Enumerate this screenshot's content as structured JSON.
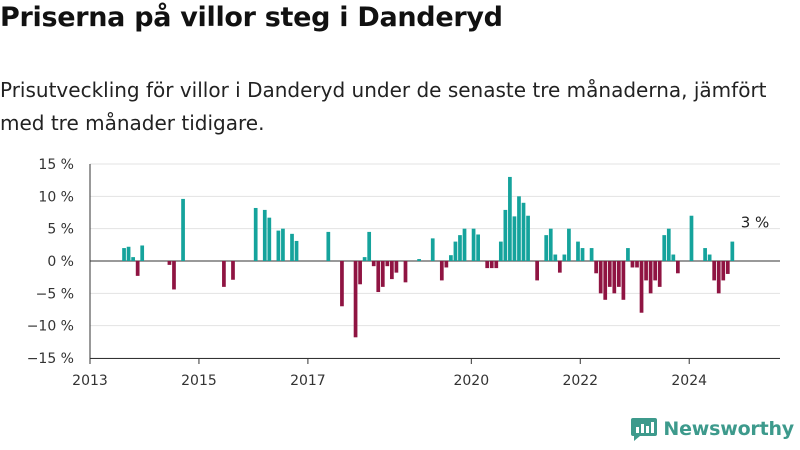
{
  "title": "Priserna på villor steg i Danderyd",
  "subtitle": "Prisutveckling för villor i Danderyd under de senaste tre månaderna, jämfört med tre månader tidigare.",
  "brand": "Newsworthy",
  "colors": {
    "positive": "#15a39c",
    "negative": "#8f1442",
    "grid": "#e3e3e3",
    "zero_line": "#333333",
    "axis": "#333333",
    "brand": "#3d9a8c"
  },
  "chart_data": {
    "type": "bar",
    "x_scale": "time",
    "x_range": [
      "2013-01",
      "2025-09"
    ],
    "ylim": [
      -15,
      15
    ],
    "yticks": [
      {
        "value": 15,
        "label": "15 %"
      },
      {
        "value": 10,
        "label": "10 %"
      },
      {
        "value": 5,
        "label": "5 %"
      },
      {
        "value": 0,
        "label": "0 %"
      },
      {
        "value": -5,
        "label": "−5 %"
      },
      {
        "value": -10,
        "label": "−10 %"
      },
      {
        "value": -15,
        "label": "−15 %"
      }
    ],
    "xticks": [
      {
        "date": "2013-01",
        "label": "2013"
      },
      {
        "date": "2015-01",
        "label": "2015"
      },
      {
        "date": "2017-01",
        "label": "2017"
      },
      {
        "date": "2020-01",
        "label": "2020"
      },
      {
        "date": "2022-01",
        "label": "2022"
      },
      {
        "date": "2024-01",
        "label": "2024"
      }
    ],
    "grid": true,
    "annotation": {
      "date": "2025-03",
      "value": 3,
      "label": "3 %"
    },
    "series": [
      {
        "values": [
          [
            "2013-08",
            2.0
          ],
          [
            "2013-09",
            2.2
          ],
          [
            "2013-10",
            0.6
          ],
          [
            "2013-11",
            -2.3
          ],
          [
            "2013-12",
            2.4
          ],
          [
            "2014-06",
            -0.6
          ],
          [
            "2014-07",
            -4.4
          ],
          [
            "2014-09",
            9.6
          ],
          [
            "2015-06",
            -4.0
          ],
          [
            "2015-08",
            -2.9
          ],
          [
            "2016-01",
            8.2
          ],
          [
            "2016-03",
            7.9
          ],
          [
            "2016-04",
            6.7
          ],
          [
            "2016-06",
            4.7
          ],
          [
            "2016-07",
            5.0
          ],
          [
            "2016-09",
            4.2
          ],
          [
            "2016-10",
            3.1
          ],
          [
            "2017-05",
            4.5
          ],
          [
            "2017-08",
            -7.0
          ],
          [
            "2017-11",
            -11.8
          ],
          [
            "2017-12",
            -3.6
          ],
          [
            "2018-01",
            0.6
          ],
          [
            "2018-02",
            4.5
          ],
          [
            "2018-03",
            -0.8
          ],
          [
            "2018-04",
            -4.8
          ],
          [
            "2018-05",
            -4.0
          ],
          [
            "2018-06",
            -0.8
          ],
          [
            "2018-07",
            -2.8
          ],
          [
            "2018-08",
            -1.8
          ],
          [
            "2018-10",
            -3.3
          ],
          [
            "2019-01",
            0.3
          ],
          [
            "2019-04",
            3.5
          ],
          [
            "2019-06",
            -3.0
          ],
          [
            "2019-07",
            -1.0
          ],
          [
            "2019-08",
            0.9
          ],
          [
            "2019-09",
            3.0
          ],
          [
            "2019-10",
            4.0
          ],
          [
            "2019-11",
            5.0
          ],
          [
            "2020-01",
            5.0
          ],
          [
            "2020-02",
            4.1
          ],
          [
            "2020-04",
            -1.1
          ],
          [
            "2020-05",
            -1.1
          ],
          [
            "2020-06",
            -1.1
          ],
          [
            "2020-07",
            3.0
          ],
          [
            "2020-08",
            7.9
          ],
          [
            "2020-09",
            13.0
          ],
          [
            "2020-10",
            6.9
          ],
          [
            "2020-11",
            10.0
          ],
          [
            "2020-12",
            9.0
          ],
          [
            "2021-01",
            7.0
          ],
          [
            "2021-03",
            -3.0
          ],
          [
            "2021-05",
            4.0
          ],
          [
            "2021-06",
            5.0
          ],
          [
            "2021-07",
            1.0
          ],
          [
            "2021-08",
            -1.8
          ],
          [
            "2021-09",
            1.0
          ],
          [
            "2021-10",
            5.0
          ],
          [
            "2021-12",
            3.0
          ],
          [
            "2022-01",
            2.0
          ],
          [
            "2022-03",
            2.0
          ],
          [
            "2022-04",
            -1.9
          ],
          [
            "2022-05",
            -5.0
          ],
          [
            "2022-06",
            -6.0
          ],
          [
            "2022-07",
            -4.0
          ],
          [
            "2022-08",
            -5.0
          ],
          [
            "2022-09",
            -4.0
          ],
          [
            "2022-10",
            -6.0
          ],
          [
            "2022-11",
            2.0
          ],
          [
            "2022-12",
            -1.0
          ],
          [
            "2023-01",
            -1.0
          ],
          [
            "2023-02",
            -8.0
          ],
          [
            "2023-03",
            -3.0
          ],
          [
            "2023-04",
            -5.0
          ],
          [
            "2023-05",
            -3.0
          ],
          [
            "2023-06",
            -4.0
          ],
          [
            "2023-07",
            4.0
          ],
          [
            "2023-08",
            5.0
          ],
          [
            "2023-09",
            1.0
          ],
          [
            "2023-10",
            -1.9
          ],
          [
            "2024-01",
            7.0
          ],
          [
            "2024-04",
            2.0
          ],
          [
            "2024-05",
            1.0
          ],
          [
            "2024-06",
            -3.0
          ],
          [
            "2024-07",
            -5.0
          ],
          [
            "2024-08",
            -3.0
          ],
          [
            "2024-09",
            -2.0
          ],
          [
            "2024-10",
            3.0
          ]
        ]
      }
    ]
  }
}
